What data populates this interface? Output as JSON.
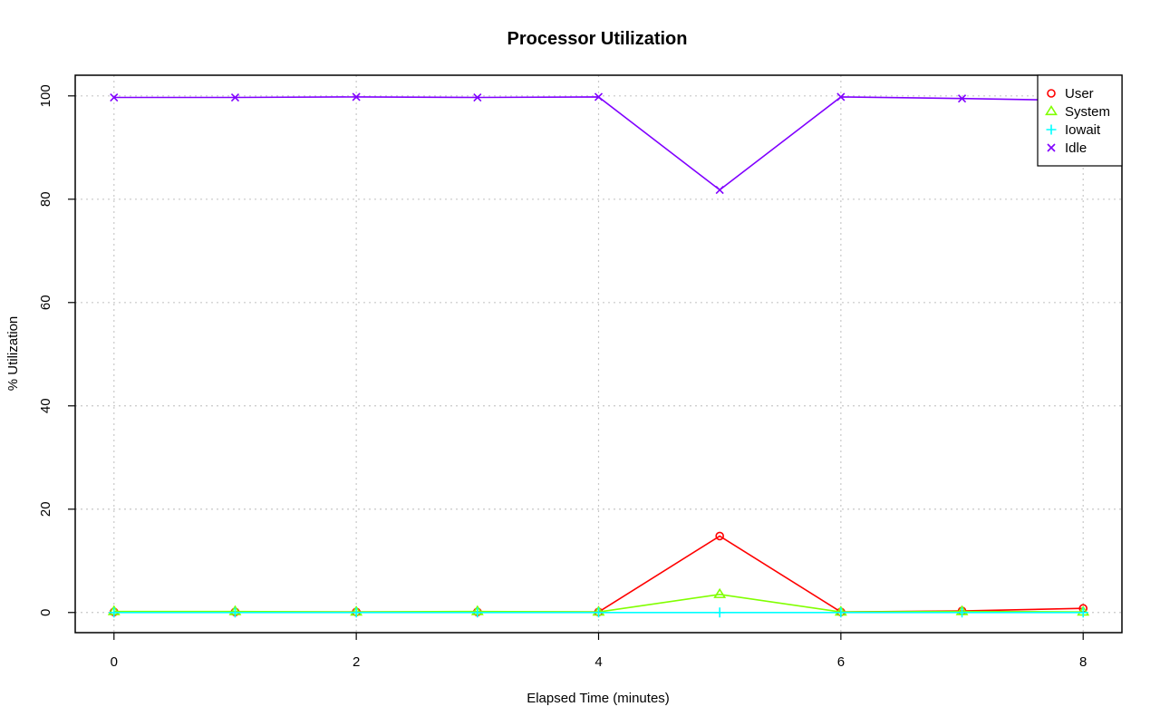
{
  "chart_data": {
    "type": "line",
    "title": "Processor Utilization",
    "xlabel": "Elapsed Time (minutes)",
    "ylabel": "% Utilization",
    "xlim": [
      -0.32,
      8.32
    ],
    "ylim": [
      -3.9,
      104.0
    ],
    "xticks": [
      0,
      2,
      4,
      6,
      8
    ],
    "yticks": [
      0,
      20,
      40,
      60,
      80,
      100
    ],
    "grid": true,
    "legend_position": "top-right",
    "x": [
      0,
      1,
      2,
      3,
      4,
      5,
      6,
      7,
      8
    ],
    "series": [
      {
        "name": "User",
        "color": "#ff0000",
        "marker": "circle",
        "values": [
          0.1,
          0.1,
          0.1,
          0.1,
          0.1,
          14.8,
          0.1,
          0.3,
          0.8
        ]
      },
      {
        "name": "System",
        "color": "#80ff00",
        "marker": "triangle",
        "values": [
          0.2,
          0.2,
          0.1,
          0.2,
          0.1,
          3.5,
          0.1,
          0.2,
          0.1
        ]
      },
      {
        "name": "Iowait",
        "color": "#00ffff",
        "marker": "plus",
        "values": [
          0.0,
          0.0,
          0.0,
          0.0,
          0.0,
          0.0,
          0.0,
          0.0,
          0.0
        ]
      },
      {
        "name": "Idle",
        "color": "#8000ff",
        "marker": "cross",
        "values": [
          99.7,
          99.7,
          99.8,
          99.7,
          99.8,
          81.8,
          99.8,
          99.5,
          99.1
        ]
      }
    ]
  }
}
